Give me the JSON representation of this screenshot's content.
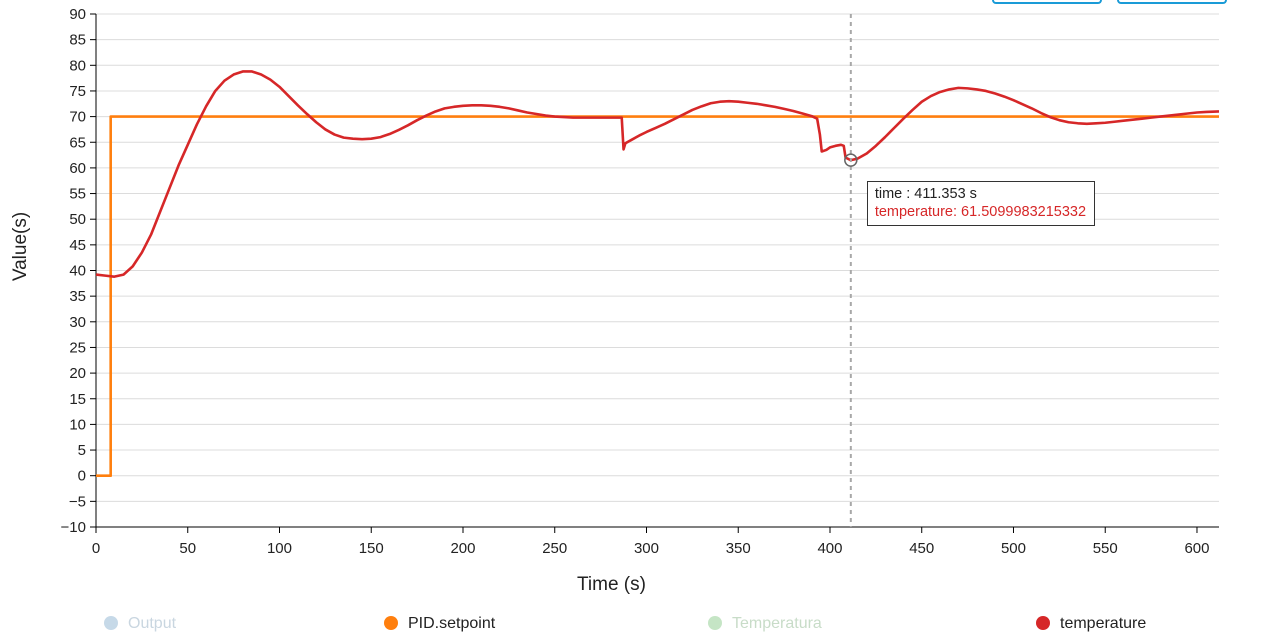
{
  "chart_data": {
    "type": "line",
    "xlabel": "Time (s)",
    "ylabel": "Value(s)",
    "xlim": [
      0,
      612
    ],
    "ylim": [
      -10,
      90
    ],
    "x_ticks": [
      0,
      50,
      100,
      150,
      200,
      250,
      300,
      350,
      400,
      450,
      500,
      550,
      600
    ],
    "y_ticks": [
      -10,
      -5,
      0,
      5,
      10,
      15,
      20,
      25,
      30,
      35,
      40,
      45,
      50,
      55,
      60,
      65,
      70,
      75,
      80,
      85,
      90
    ],
    "grid": true,
    "legend_position": "bottom",
    "series": [
      {
        "name": "Output",
        "color": "#a6c8e0",
        "hidden": true,
        "points": []
      },
      {
        "name": "PID.setpoint",
        "color": "#ff7f0e",
        "hidden": false,
        "points": [
          [
            0,
            0
          ],
          [
            8,
            0
          ],
          [
            8,
            70
          ],
          [
            612,
            70
          ]
        ]
      },
      {
        "name": "Temperatura",
        "color": "#b5dfb5",
        "hidden": true,
        "points": []
      },
      {
        "name": "temperature",
        "color": "#d62728",
        "hidden": false,
        "points": [
          [
            0,
            39.2
          ],
          [
            5,
            39
          ],
          [
            10,
            38.8
          ],
          [
            15,
            39.2
          ],
          [
            20,
            40.8
          ],
          [
            25,
            43.5
          ],
          [
            30,
            47
          ],
          [
            35,
            51.5
          ],
          [
            40,
            56
          ],
          [
            45,
            60.5
          ],
          [
            50,
            64.5
          ],
          [
            55,
            68.5
          ],
          [
            60,
            72
          ],
          [
            65,
            75
          ],
          [
            70,
            77
          ],
          [
            75,
            78.2
          ],
          [
            80,
            78.8
          ],
          [
            85,
            78.8
          ],
          [
            90,
            78.2
          ],
          [
            95,
            77.2
          ],
          [
            100,
            75.8
          ],
          [
            105,
            74
          ],
          [
            110,
            72.2
          ],
          [
            115,
            70.5
          ],
          [
            120,
            68.9
          ],
          [
            125,
            67.5
          ],
          [
            130,
            66.5
          ],
          [
            135,
            65.9
          ],
          [
            140,
            65.7
          ],
          [
            145,
            65.6
          ],
          [
            150,
            65.7
          ],
          [
            155,
            66
          ],
          [
            160,
            66.6
          ],
          [
            165,
            67.4
          ],
          [
            170,
            68.3
          ],
          [
            175,
            69.3
          ],
          [
            180,
            70.2
          ],
          [
            185,
            71
          ],
          [
            190,
            71.6
          ],
          [
            195,
            71.9
          ],
          [
            200,
            72.1
          ],
          [
            205,
            72.2
          ],
          [
            210,
            72.2
          ],
          [
            215,
            72.1
          ],
          [
            220,
            71.9
          ],
          [
            225,
            71.6
          ],
          [
            230,
            71.2
          ],
          [
            235,
            70.8
          ],
          [
            240,
            70.5
          ],
          [
            245,
            70.2
          ],
          [
            250,
            70
          ],
          [
            255,
            69.9
          ],
          [
            260,
            69.8
          ],
          [
            265,
            69.8
          ],
          [
            270,
            69.8
          ],
          [
            275,
            69.8
          ],
          [
            280,
            69.8
          ],
          [
            284,
            69.8
          ],
          [
            286.5,
            69.8
          ],
          [
            287.5,
            63.6
          ],
          [
            288.5,
            64.8
          ],
          [
            292,
            65.5
          ],
          [
            296,
            66.3
          ],
          [
            300,
            67
          ],
          [
            305,
            67.8
          ],
          [
            310,
            68.6
          ],
          [
            315,
            69.5
          ],
          [
            320,
            70.4
          ],
          [
            325,
            71.3
          ],
          [
            330,
            72
          ],
          [
            335,
            72.6
          ],
          [
            340,
            72.9
          ],
          [
            345,
            73
          ],
          [
            350,
            72.9
          ],
          [
            355,
            72.7
          ],
          [
            360,
            72.5
          ],
          [
            365,
            72.2
          ],
          [
            370,
            71.9
          ],
          [
            375,
            71.5
          ],
          [
            380,
            71.1
          ],
          [
            385,
            70.6
          ],
          [
            390,
            70.1
          ],
          [
            393,
            69.6
          ],
          [
            394.5,
            66.5
          ],
          [
            395.5,
            63.2
          ],
          [
            398,
            63.5
          ],
          [
            400,
            64
          ],
          [
            403,
            64.3
          ],
          [
            406,
            64.5
          ],
          [
            407.5,
            64.3
          ],
          [
            408.5,
            62
          ],
          [
            411.353,
            61.51
          ],
          [
            415,
            61.8
          ],
          [
            420,
            62.8
          ],
          [
            425,
            64.3
          ],
          [
            430,
            66
          ],
          [
            435,
            67.8
          ],
          [
            440,
            69.6
          ],
          [
            445,
            71.3
          ],
          [
            450,
            72.9
          ],
          [
            455,
            74
          ],
          [
            460,
            74.8
          ],
          [
            465,
            75.3
          ],
          [
            470,
            75.6
          ],
          [
            475,
            75.5
          ],
          [
            480,
            75.3
          ],
          [
            485,
            75
          ],
          [
            490,
            74.5
          ],
          [
            495,
            73.9
          ],
          [
            500,
            73.2
          ],
          [
            505,
            72.4
          ],
          [
            510,
            71.6
          ],
          [
            515,
            70.7
          ],
          [
            520,
            69.9
          ],
          [
            525,
            69.3
          ],
          [
            530,
            68.9
          ],
          [
            535,
            68.7
          ],
          [
            540,
            68.6
          ],
          [
            545,
            68.7
          ],
          [
            550,
            68.8
          ],
          [
            555,
            69
          ],
          [
            560,
            69.2
          ],
          [
            565,
            69.4
          ],
          [
            570,
            69.6
          ],
          [
            575,
            69.8
          ],
          [
            580,
            70
          ],
          [
            585,
            70.2
          ],
          [
            590,
            70.4
          ],
          [
            595,
            70.6
          ],
          [
            600,
            70.8
          ],
          [
            605,
            70.9
          ],
          [
            612,
            71
          ]
        ]
      }
    ],
    "tooltip": {
      "x": 411.353,
      "y": 61.5099983215332,
      "time_text": "time : 411.353 s",
      "value_text": "temperature: 61.5099983215332"
    }
  }
}
